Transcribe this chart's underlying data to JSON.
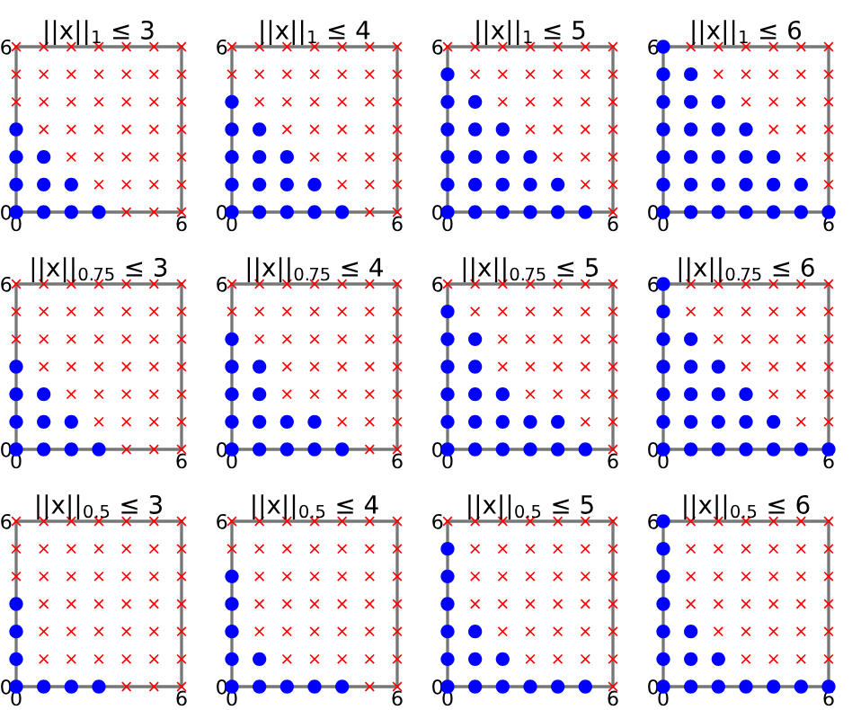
{
  "chart_data": [
    {
      "type": "scatter",
      "title": "||x||$_{1}$ ≤ 3",
      "xlim": [
        0,
        6
      ],
      "ylim": [
        0,
        6
      ],
      "xticks": [
        0,
        6
      ],
      "yticks": [
        0,
        6
      ],
      "series": [
        {
          "color": "#0000ff",
          "marker": "circle",
          "x": [
            0,
            0,
            0,
            0,
            1,
            1,
            1,
            2,
            2,
            3
          ],
          "values": [
            0,
            1,
            2,
            3,
            0,
            1,
            2,
            0,
            1,
            0
          ]
        },
        {
          "color": "#ff0000",
          "marker": "cross",
          "x": [
            0,
            0,
            0,
            1,
            1,
            1,
            1,
            2,
            2,
            2,
            2,
            2,
            3,
            3,
            3,
            3,
            3,
            3,
            4,
            4,
            4,
            4,
            4,
            4,
            4,
            5,
            5,
            5,
            5,
            5,
            5,
            5,
            6,
            6,
            6,
            6,
            6,
            6,
            6
          ],
          "values": [
            4,
            5,
            6,
            3,
            4,
            5,
            6,
            2,
            3,
            4,
            5,
            6,
            1,
            2,
            3,
            4,
            5,
            6,
            0,
            1,
            2,
            3,
            4,
            5,
            6,
            0,
            1,
            2,
            3,
            4,
            5,
            6,
            0,
            1,
            2,
            3,
            4,
            5,
            6
          ]
        }
      ]
    },
    {
      "type": "scatter",
      "title": "||x||$_{1}$ ≤ 4",
      "xlim": [
        0,
        6
      ],
      "ylim": [
        0,
        6
      ],
      "xticks": [
        0,
        6
      ],
      "yticks": [
        0,
        6
      ],
      "series": [
        {
          "color": "#0000ff",
          "marker": "circle",
          "x": [
            0,
            0,
            0,
            0,
            0,
            1,
            1,
            1,
            1,
            2,
            2,
            2,
            3,
            3,
            4
          ],
          "values": [
            0,
            1,
            2,
            3,
            4,
            0,
            1,
            2,
            3,
            0,
            1,
            2,
            0,
            1,
            0
          ]
        },
        {
          "color": "#ff0000",
          "marker": "cross",
          "x": [
            0,
            0,
            1,
            1,
            1,
            2,
            2,
            2,
            2,
            3,
            3,
            3,
            3,
            3,
            4,
            4,
            4,
            4,
            4,
            4,
            5,
            5,
            5,
            5,
            5,
            5,
            5,
            6,
            6,
            6,
            6,
            6,
            6,
            6
          ],
          "values": [
            5,
            6,
            4,
            5,
            6,
            3,
            4,
            5,
            6,
            2,
            3,
            4,
            5,
            6,
            1,
            2,
            3,
            4,
            5,
            6,
            0,
            1,
            2,
            3,
            4,
            5,
            6,
            0,
            1,
            2,
            3,
            4,
            5,
            6
          ]
        }
      ]
    },
    {
      "type": "scatter",
      "title": "||x||$_{1}$ ≤ 5",
      "xlim": [
        0,
        6
      ],
      "ylim": [
        0,
        6
      ],
      "xticks": [
        0,
        6
      ],
      "yticks": [
        0,
        6
      ],
      "series": [
        {
          "color": "#0000ff",
          "marker": "circle",
          "x": [
            0,
            0,
            0,
            0,
            0,
            0,
            1,
            1,
            1,
            1,
            1,
            2,
            2,
            2,
            2,
            3,
            3,
            3,
            4,
            4,
            5
          ],
          "values": [
            0,
            1,
            2,
            3,
            4,
            5,
            0,
            1,
            2,
            3,
            4,
            0,
            1,
            2,
            3,
            0,
            1,
            2,
            0,
            1,
            0
          ]
        },
        {
          "color": "#ff0000",
          "marker": "cross",
          "x": [
            0,
            1,
            1,
            2,
            2,
            2,
            3,
            3,
            3,
            3,
            4,
            4,
            4,
            4,
            4,
            5,
            5,
            5,
            5,
            5,
            5,
            6,
            6,
            6,
            6,
            6,
            6,
            6
          ],
          "values": [
            6,
            5,
            6,
            4,
            5,
            6,
            3,
            4,
            5,
            6,
            2,
            3,
            4,
            5,
            6,
            1,
            2,
            3,
            4,
            5,
            6,
            0,
            1,
            2,
            3,
            4,
            5,
            6
          ]
        }
      ]
    },
    {
      "type": "scatter",
      "title": "||x||$_{1}$ ≤ 6",
      "xlim": [
        0,
        6
      ],
      "ylim": [
        0,
        6
      ],
      "xticks": [
        0,
        6
      ],
      "yticks": [
        0,
        6
      ],
      "series": [
        {
          "color": "#0000ff",
          "marker": "circle",
          "x": [
            0,
            0,
            0,
            0,
            0,
            0,
            0,
            1,
            1,
            1,
            1,
            1,
            1,
            2,
            2,
            2,
            2,
            2,
            3,
            3,
            3,
            3,
            4,
            4,
            4,
            5,
            5,
            6
          ],
          "values": [
            0,
            1,
            2,
            3,
            4,
            5,
            6,
            0,
            1,
            2,
            3,
            4,
            5,
            0,
            1,
            2,
            3,
            4,
            0,
            1,
            2,
            3,
            0,
            1,
            2,
            0,
            1,
            0
          ]
        },
        {
          "color": "#ff0000",
          "marker": "cross",
          "x": [
            1,
            2,
            2,
            3,
            3,
            3,
            4,
            4,
            4,
            4,
            5,
            5,
            5,
            5,
            5,
            6,
            6,
            6,
            6,
            6,
            6
          ],
          "values": [
            6,
            5,
            6,
            4,
            5,
            6,
            3,
            4,
            5,
            6,
            2,
            3,
            4,
            5,
            6,
            1,
            2,
            3,
            4,
            5,
            6
          ]
        }
      ]
    },
    {
      "type": "scatter",
      "title": "||x||$_{0.75}$ ≤ 3",
      "xlim": [
        0,
        6
      ],
      "ylim": [
        0,
        6
      ],
      "xticks": [
        0,
        6
      ],
      "yticks": [
        0,
        6
      ],
      "series": [
        {
          "color": "#0000ff",
          "marker": "circle",
          "x": [
            0,
            0,
            0,
            0,
            1,
            1,
            1,
            2,
            2,
            3
          ],
          "values": [
            0,
            1,
            2,
            3,
            0,
            1,
            2,
            0,
            1,
            0
          ]
        },
        {
          "color": "#ff0000",
          "marker": "cross",
          "x": [
            0,
            0,
            0,
            1,
            1,
            1,
            1,
            2,
            2,
            2,
            2,
            2,
            3,
            3,
            3,
            3,
            3,
            3,
            4,
            4,
            4,
            4,
            4,
            4,
            4,
            5,
            5,
            5,
            5,
            5,
            5,
            5,
            6,
            6,
            6,
            6,
            6,
            6,
            6
          ],
          "values": [
            4,
            5,
            6,
            3,
            4,
            5,
            6,
            2,
            3,
            4,
            5,
            6,
            1,
            2,
            3,
            4,
            5,
            6,
            0,
            1,
            2,
            3,
            4,
            5,
            6,
            0,
            1,
            2,
            3,
            4,
            5,
            6,
            0,
            1,
            2,
            3,
            4,
            5,
            6
          ]
        }
      ]
    },
    {
      "type": "scatter",
      "title": "||x||$_{0.75}$ ≤ 4",
      "xlim": [
        0,
        6
      ],
      "ylim": [
        0,
        6
      ],
      "xticks": [
        0,
        6
      ],
      "yticks": [
        0,
        6
      ],
      "series": [
        {
          "color": "#0000ff",
          "marker": "circle",
          "x": [
            0,
            0,
            0,
            0,
            0,
            1,
            1,
            1,
            1,
            2,
            2,
            3,
            3,
            4
          ],
          "values": [
            0,
            1,
            2,
            3,
            4,
            0,
            1,
            2,
            3,
            0,
            1,
            0,
            1,
            0
          ]
        },
        {
          "color": "#ff0000",
          "marker": "cross",
          "x": [
            0,
            0,
            1,
            1,
            1,
            2,
            2,
            2,
            2,
            2,
            3,
            3,
            3,
            3,
            3,
            4,
            4,
            4,
            4,
            4,
            4,
            5,
            5,
            5,
            5,
            5,
            5,
            5,
            6,
            6,
            6,
            6,
            6,
            6,
            6
          ],
          "values": [
            5,
            6,
            4,
            5,
            6,
            2,
            3,
            4,
            5,
            6,
            2,
            3,
            4,
            5,
            6,
            1,
            2,
            3,
            4,
            5,
            6,
            0,
            1,
            2,
            3,
            4,
            5,
            6,
            0,
            1,
            2,
            3,
            4,
            5,
            6
          ]
        }
      ]
    },
    {
      "type": "scatter",
      "title": "||x||$_{0.75}$ ≤ 5",
      "xlim": [
        0,
        6
      ],
      "ylim": [
        0,
        6
      ],
      "xticks": [
        0,
        6
      ],
      "yticks": [
        0,
        6
      ],
      "series": [
        {
          "color": "#0000ff",
          "marker": "circle",
          "x": [
            0,
            0,
            0,
            0,
            0,
            0,
            1,
            1,
            1,
            1,
            1,
            2,
            2,
            2,
            3,
            3,
            4,
            4,
            5
          ],
          "values": [
            0,
            1,
            2,
            3,
            4,
            5,
            0,
            1,
            2,
            3,
            4,
            0,
            1,
            2,
            0,
            1,
            0,
            1,
            0
          ]
        },
        {
          "color": "#ff0000",
          "marker": "cross",
          "x": [
            0,
            1,
            1,
            2,
            2,
            2,
            2,
            3,
            3,
            3,
            3,
            3,
            4,
            4,
            4,
            4,
            4,
            5,
            5,
            5,
            5,
            5,
            5,
            6,
            6,
            6,
            6,
            6,
            6,
            6
          ],
          "values": [
            6,
            5,
            6,
            3,
            4,
            5,
            6,
            2,
            3,
            4,
            5,
            6,
            2,
            3,
            4,
            5,
            6,
            1,
            2,
            3,
            4,
            5,
            6,
            0,
            1,
            2,
            3,
            4,
            5,
            6
          ]
        }
      ]
    },
    {
      "type": "scatter",
      "title": "||x||$_{0.75}$ ≤ 6",
      "xlim": [
        0,
        6
      ],
      "ylim": [
        0,
        6
      ],
      "xticks": [
        0,
        6
      ],
      "yticks": [
        0,
        6
      ],
      "series": [
        {
          "color": "#0000ff",
          "marker": "circle",
          "x": [
            0,
            0,
            0,
            0,
            0,
            0,
            0,
            1,
            1,
            1,
            1,
            1,
            2,
            2,
            2,
            2,
            3,
            3,
            3,
            4,
            4,
            5,
            6
          ],
          "values": [
            0,
            1,
            2,
            3,
            4,
            5,
            6,
            0,
            1,
            2,
            3,
            4,
            0,
            1,
            2,
            3,
            0,
            1,
            2,
            0,
            1,
            0,
            0
          ]
        },
        {
          "color": "#ff0000",
          "marker": "cross",
          "x": [
            1,
            1,
            2,
            2,
            2,
            3,
            3,
            3,
            3,
            4,
            4,
            4,
            4,
            4,
            5,
            5,
            5,
            5,
            5,
            5,
            6,
            6,
            6,
            6,
            6,
            6
          ],
          "values": [
            5,
            6,
            4,
            5,
            6,
            3,
            4,
            5,
            6,
            2,
            3,
            4,
            5,
            6,
            1,
            2,
            3,
            4,
            5,
            6,
            1,
            2,
            3,
            4,
            5,
            6
          ]
        }
      ]
    },
    {
      "type": "scatter",
      "title": "||x||$_{0.5}$ ≤ 3",
      "xlim": [
        0,
        6
      ],
      "ylim": [
        0,
        6
      ],
      "xticks": [
        0,
        6
      ],
      "yticks": [
        0,
        6
      ],
      "series": [
        {
          "color": "#0000ff",
          "marker": "circle",
          "x": [
            0,
            0,
            0,
            0,
            1,
            2,
            3
          ],
          "values": [
            0,
            1,
            2,
            3,
            0,
            0,
            0
          ]
        },
        {
          "color": "#ff0000",
          "marker": "cross",
          "x": [
            0,
            0,
            0,
            1,
            1,
            1,
            1,
            1,
            1,
            2,
            2,
            2,
            2,
            2,
            2,
            3,
            3,
            3,
            3,
            3,
            3,
            4,
            4,
            4,
            4,
            4,
            4,
            4,
            5,
            5,
            5,
            5,
            5,
            5,
            5,
            6,
            6,
            6,
            6,
            6,
            6,
            6
          ],
          "values": [
            4,
            5,
            6,
            1,
            2,
            3,
            4,
            5,
            6,
            1,
            2,
            3,
            4,
            5,
            6,
            1,
            2,
            3,
            4,
            5,
            6,
            0,
            1,
            2,
            3,
            4,
            5,
            6,
            0,
            1,
            2,
            3,
            4,
            5,
            6,
            0,
            1,
            2,
            3,
            4,
            5,
            6
          ]
        }
      ]
    },
    {
      "type": "scatter",
      "title": "||x||$_{0.5}$ ≤ 4",
      "xlim": [
        0,
        6
      ],
      "ylim": [
        0,
        6
      ],
      "xticks": [
        0,
        6
      ],
      "yticks": [
        0,
        6
      ],
      "series": [
        {
          "color": "#0000ff",
          "marker": "circle",
          "x": [
            0,
            0,
            0,
            0,
            0,
            1,
            1,
            2,
            3,
            4
          ],
          "values": [
            0,
            1,
            2,
            3,
            4,
            0,
            1,
            0,
            0,
            0
          ]
        },
        {
          "color": "#ff0000",
          "marker": "cross",
          "x": [
            0,
            0,
            1,
            1,
            1,
            1,
            1,
            2,
            2,
            2,
            2,
            2,
            2,
            3,
            3,
            3,
            3,
            3,
            3,
            4,
            4,
            4,
            4,
            4,
            4,
            5,
            5,
            5,
            5,
            5,
            5,
            5,
            6,
            6,
            6,
            6,
            6,
            6,
            6
          ],
          "values": [
            5,
            6,
            2,
            3,
            4,
            5,
            6,
            1,
            2,
            3,
            4,
            5,
            6,
            1,
            2,
            3,
            4,
            5,
            6,
            1,
            2,
            3,
            4,
            5,
            6,
            0,
            1,
            2,
            3,
            4,
            5,
            6,
            0,
            1,
            2,
            3,
            4,
            5,
            6
          ]
        }
      ]
    },
    {
      "type": "scatter",
      "title": "||x||$_{0.5}$ ≤ 5",
      "xlim": [
        0,
        6
      ],
      "ylim": [
        0,
        6
      ],
      "xticks": [
        0,
        6
      ],
      "yticks": [
        0,
        6
      ],
      "series": [
        {
          "color": "#0000ff",
          "marker": "circle",
          "x": [
            0,
            0,
            0,
            0,
            0,
            0,
            1,
            1,
            1,
            2,
            2,
            3,
            4,
            5
          ],
          "values": [
            0,
            1,
            2,
            3,
            4,
            5,
            0,
            1,
            2,
            0,
            1,
            0,
            0,
            0
          ]
        },
        {
          "color": "#ff0000",
          "marker": "cross",
          "x": [
            0,
            1,
            1,
            1,
            1,
            2,
            2,
            2,
            2,
            2,
            3,
            3,
            3,
            3,
            3,
            3,
            4,
            4,
            4,
            4,
            4,
            4,
            5,
            5,
            5,
            5,
            5,
            5,
            6,
            6,
            6,
            6,
            6,
            6,
            6
          ],
          "values": [
            6,
            3,
            4,
            5,
            6,
            2,
            3,
            4,
            5,
            6,
            1,
            2,
            3,
            4,
            5,
            6,
            1,
            2,
            3,
            4,
            5,
            6,
            1,
            2,
            3,
            4,
            5,
            6,
            0,
            1,
            2,
            3,
            4,
            5,
            6
          ]
        }
      ]
    },
    {
      "type": "scatter",
      "title": "||x||$_{0.5}$ ≤ 6",
      "xlim": [
        0,
        6
      ],
      "ylim": [
        0,
        6
      ],
      "xticks": [
        0,
        6
      ],
      "yticks": [
        0,
        6
      ],
      "series": [
        {
          "color": "#0000ff",
          "marker": "circle",
          "x": [
            0,
            0,
            0,
            0,
            0,
            0,
            0,
            1,
            1,
            1,
            2,
            2,
            3,
            4,
            5,
            6
          ],
          "values": [
            0,
            1,
            2,
            3,
            4,
            5,
            6,
            0,
            1,
            2,
            0,
            1,
            0,
            0,
            0,
            0
          ]
        },
        {
          "color": "#ff0000",
          "marker": "cross",
          "x": [
            1,
            1,
            1,
            1,
            2,
            2,
            2,
            2,
            2,
            3,
            3,
            3,
            3,
            3,
            3,
            4,
            4,
            4,
            4,
            4,
            4,
            5,
            5,
            5,
            5,
            5,
            5,
            6,
            6,
            6,
            6,
            6,
            6
          ],
          "values": [
            3,
            4,
            5,
            6,
            2,
            3,
            4,
            5,
            6,
            1,
            2,
            3,
            4,
            5,
            6,
            1,
            2,
            3,
            4,
            5,
            6,
            1,
            2,
            3,
            4,
            5,
            6,
            1,
            2,
            3,
            4,
            5,
            6
          ]
        }
      ]
    }
  ]
}
